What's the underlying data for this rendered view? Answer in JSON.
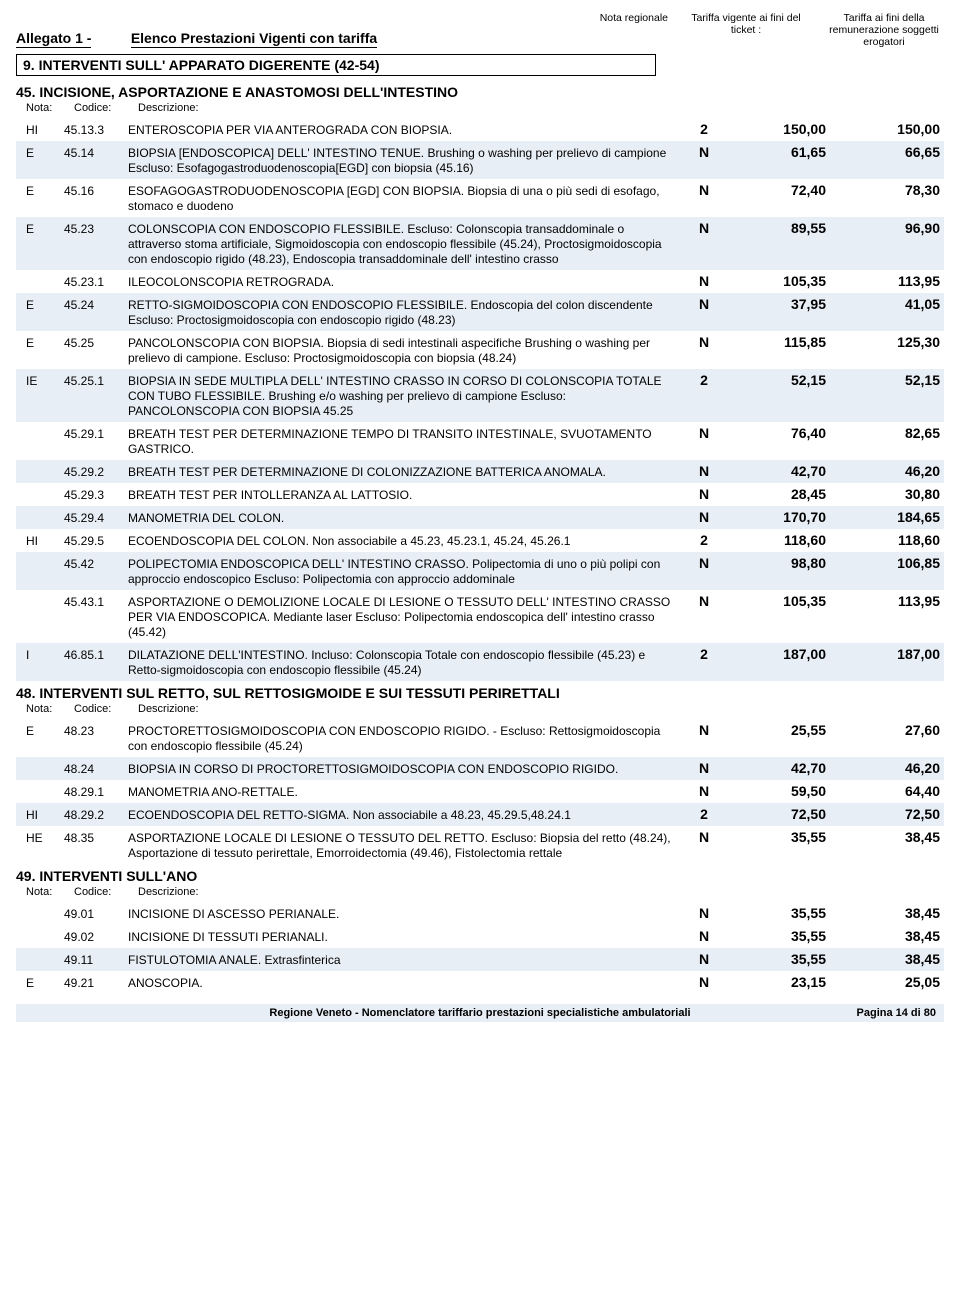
{
  "header": {
    "allegato": "Allegato 1 -",
    "elenco": "Elenco Prestazioni Vigenti con tariffa",
    "col_nr": "Nota regionale",
    "col_t1": "Tariffa vigente ai fini del ticket :",
    "col_t2": "Tariffa ai fini della remunerazione soggetti erogatori"
  },
  "section9": "9. INTERVENTI SULL' APPARATO DIGERENTE (42-54)",
  "s45_title": "45. INCISIONE, ASPORTAZIONE E ANASTOMOSI DELL'INTESTINO",
  "col_labels": {
    "nota": "Nota:",
    "codice": "Codice:",
    "desc": "Descrizione:"
  },
  "s45_rows": [
    {
      "nota": "HI",
      "codice": "45.13.3",
      "desc": "ENTEROSCOPIA PER VIA ANTEROGRADA CON BIOPSIA.",
      "nr": "2",
      "t1": "150,00",
      "t2": "150,00",
      "shade": false
    },
    {
      "nota": "E",
      "codice": "45.14",
      "desc": "BIOPSIA [ENDOSCOPICA] DELL' INTESTINO TENUE. Brushing o washing per prelievo di campione Escluso: Esofagogastroduodenoscopia[EGD] con biopsia (45.16)",
      "nr": "N",
      "t1": "61,65",
      "t2": "66,65",
      "shade": true
    },
    {
      "nota": "E",
      "codice": "45.16",
      "desc": "ESOFAGOGASTRODUODENOSCOPIA [EGD] CON BIOPSIA. Biopsia di una o più sedi di esofago, stomaco e duodeno",
      "nr": "N",
      "t1": "72,40",
      "t2": "78,30",
      "shade": false
    },
    {
      "nota": "E",
      "codice": "45.23",
      "desc": "COLONSCOPIA CON ENDOSCOPIO FLESSIBILE. Escluso: Colonscopia transaddominale o attraverso stoma artificiale, Sigmoidoscopia con endoscopio flessibile (45.24), Proctosigmoidoscopia con endoscopio rigido (48.23), Endoscopia transaddominale dell' intestino crasso",
      "nr": "N",
      "t1": "89,55",
      "t2": "96,90",
      "shade": true
    },
    {
      "nota": "",
      "codice": "45.23.1",
      "desc": "ILEOCOLONSCOPIA RETROGRADA.",
      "nr": "N",
      "t1": "105,35",
      "t2": "113,95",
      "shade": false,
      "indent": true
    },
    {
      "nota": "E",
      "codice": "45.24",
      "desc": "RETTO-SIGMOIDOSCOPIA CON ENDOSCOPIO FLESSIBILE. Endoscopia del colon discendente Escluso: Proctosigmoidoscopia con endoscopio rigido (48.23)",
      "nr": "N",
      "t1": "37,95",
      "t2": "41,05",
      "shade": true
    },
    {
      "nota": "E",
      "codice": "45.25",
      "desc": "PANCOLONSCOPIA CON BIOPSIA. Biopsia di sedi intestinali aspecifiche Brushing o washing per prelievo di campione. Escluso: Proctosigmoidoscopia con biopsia (48.24)",
      "nr": "N",
      "t1": "115,85",
      "t2": "125,30",
      "shade": false
    },
    {
      "nota": "IE",
      "codice": "45.25.1",
      "desc": "BIOPSIA  IN SEDE MULTIPLA DELL' INTESTINO CRASSO IN CORSO DI COLONSCOPIA TOTALE CON TUBO FLESSIBILE. Brushing e/o washing per prelievo di campione Escluso: PANCOLONSCOPIA CON BIOPSIA 45.25",
      "nr": "2",
      "t1": "52,15",
      "t2": "52,15",
      "shade": true
    },
    {
      "nota": "",
      "codice": "45.29.1",
      "desc": "BREATH TEST PER DETERMINAZIONE TEMPO DI TRANSITO INTESTINALE, SVUOTAMENTO GASTRICO.",
      "nr": "N",
      "t1": "76,40",
      "t2": "82,65",
      "shade": false,
      "indent": true
    },
    {
      "nota": "",
      "codice": "45.29.2",
      "desc": "BREATH TEST PER DETERMINAZIONE DI COLONIZZAZIONE BATTERICA ANOMALA.",
      "nr": "N",
      "t1": "42,70",
      "t2": "46,20",
      "shade": true,
      "indent": true
    },
    {
      "nota": "",
      "codice": "45.29.3",
      "desc": "BREATH TEST PER INTOLLERANZA AL LATTOSIO.",
      "nr": "N",
      "t1": "28,45",
      "t2": "30,80",
      "shade": false,
      "indent": true
    },
    {
      "nota": "",
      "codice": "45.29.4",
      "desc": "MANOMETRIA DEL COLON.",
      "nr": "N",
      "t1": "170,70",
      "t2": "184,65",
      "shade": true,
      "indent": true
    },
    {
      "nota": "HI",
      "codice": "45.29.5",
      "desc": "ECOENDOSCOPIA DEL COLON. Non associabile a 45.23, 45.23.1, 45.24, 45.26.1",
      "nr": "2",
      "t1": "118,60",
      "t2": "118,60",
      "shade": false
    },
    {
      "nota": "",
      "codice": "45.42",
      "desc": "POLIPECTOMIA ENDOSCOPICA  DELL' INTESTINO CRASSO. Polipectomia di uno o più polipi con approccio endoscopico Escluso: Polipectomia con approccio addominale",
      "nr": "N",
      "t1": "98,80",
      "t2": "106,85",
      "shade": true,
      "indent": true
    },
    {
      "nota": "",
      "codice": "45.43.1",
      "desc": "ASPORTAZIONE O DEMOLIZIONE LOCALE DI LESIONE O TESSUTO DELL' INTESTINO CRASSO PER VIA ENDOSCOPICA. Mediante laser Escluso: Polipectomia endoscopica dell' intestino crasso (45.42)",
      "nr": "N",
      "t1": "105,35",
      "t2": "113,95",
      "shade": false,
      "indent": true
    },
    {
      "nota": "I",
      "codice": "46.85.1",
      "desc": "DILATAZIONE DELL'INTESTINO. Incluso: Colonscopia Totale con endoscopio flessibile (45.23) e Retto-sigmoidoscopia con endoscopio flessibile (45.24)",
      "nr": "2",
      "t1": "187,00",
      "t2": "187,00",
      "shade": true
    }
  ],
  "s48_title": "48. INTERVENTI SUL RETTO, SUL RETTOSIGMOIDE E SUI TESSUTI PERIRETTALI",
  "s48_rows": [
    {
      "nota": "E",
      "codice": "48.23",
      "desc": "PROCTORETTOSIGMOIDOSCOPIA CON ENDOSCOPIO RIGIDO. - Escluso: Rettosigmoidoscopia con endoscopio flessibile (45.24)",
      "nr": "N",
      "t1": "25,55",
      "t2": "27,60",
      "shade": false
    },
    {
      "nota": "",
      "codice": "48.24",
      "desc": "BIOPSIA IN CORSO DI PROCTORETTOSIGMOIDOSCOPIA CON ENDOSCOPIO RIGIDO.",
      "nr": "N",
      "t1": "42,70",
      "t2": "46,20",
      "shade": true,
      "indent": true
    },
    {
      "nota": "",
      "codice": "48.29.1",
      "desc": "MANOMETRIA ANO-RETTALE.",
      "nr": "N",
      "t1": "59,50",
      "t2": "64,40",
      "shade": false,
      "indent": true
    },
    {
      "nota": "HI",
      "codice": "48.29.2",
      "desc": "ECOENDOSCOPIA DEL RETTO-SIGMA. Non associabile a 48.23, 45.29.5,48.24.1",
      "nr": "2",
      "t1": "72,50",
      "t2": "72,50",
      "shade": true
    },
    {
      "nota": "HE",
      "codice": "48.35",
      "desc": "ASPORTAZIONE LOCALE DI LESIONE O TESSUTO DEL RETTO. Escluso: Biopsia del retto (48.24), Asportazione di tessuto perirettale, Emorroidectomia (49.46), Fistolectomia rettale",
      "nr": "N",
      "t1": "35,55",
      "t2": "38,45",
      "shade": false
    }
  ],
  "s49_title": "49. INTERVENTI SULL'ANO",
  "s49_rows": [
    {
      "nota": "",
      "codice": "49.01",
      "desc": "INCISIONE DI ASCESSO PERIANALE.",
      "nr": "N",
      "t1": "35,55",
      "t2": "38,45",
      "shade": false,
      "indent": true
    },
    {
      "nota": "",
      "codice": "49.02",
      "desc": "INCISIONE DI TESSUTI PERIANALI.",
      "nr": "N",
      "t1": "35,55",
      "t2": "38,45",
      "shade": false,
      "indent": true
    },
    {
      "nota": "",
      "codice": "49.11",
      "desc": "FISTULOTOMIA ANALE. Extrasfinterica",
      "nr": "N",
      "t1": "35,55",
      "t2": "38,45",
      "shade": true,
      "indent": true
    },
    {
      "nota": "E",
      "codice": "49.21",
      "desc": "ANOSCOPIA.",
      "nr": "N",
      "t1": "23,15",
      "t2": "25,05",
      "shade": false
    }
  ],
  "footer": {
    "text": "Regione Veneto - Nomenclatore tariffario prestazioni specialistiche ambulatoriali",
    "page": "Pagina 14 di 80"
  }
}
